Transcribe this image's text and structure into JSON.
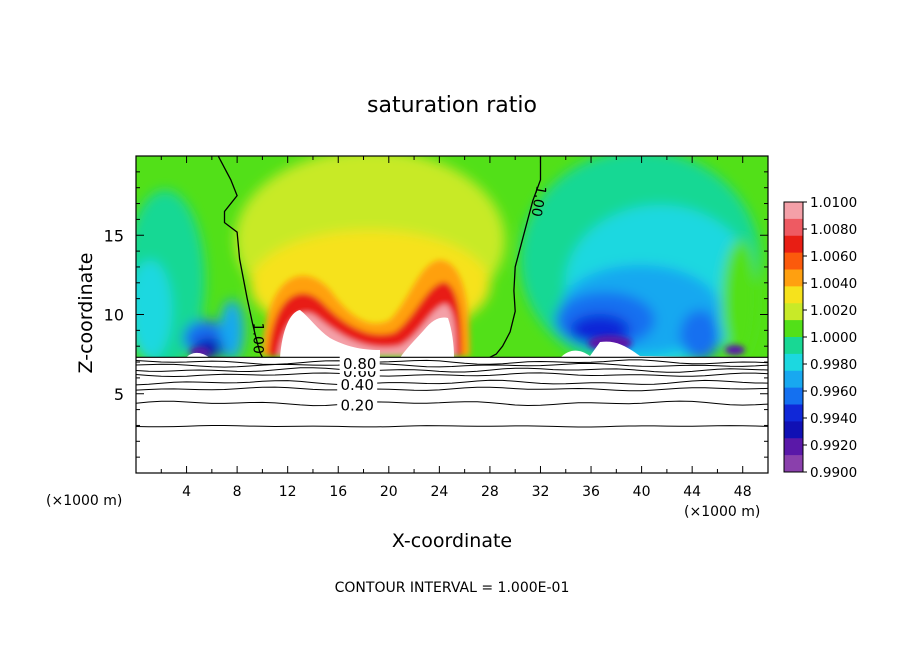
{
  "chart_data": {
    "type": "heatmap",
    "title": "saturation ratio",
    "xlabel": "X-coordinate",
    "ylabel": "Z-coordinate",
    "x_unit_left": "(×1000 m)",
    "x_unit_right": "(×1000 m)",
    "footer": "CONTOUR INTERVAL = 1.000E-01",
    "xlim": [
      0,
      50
    ],
    "ylim": [
      0,
      20
    ],
    "xticks": [
      4,
      8,
      12,
      16,
      20,
      24,
      28,
      32,
      36,
      40,
      44,
      48
    ],
    "xtick_labels": [
      "4",
      "8",
      "12",
      "16",
      "20",
      "24",
      "28",
      "32",
      "36",
      "40",
      "44",
      "48"
    ],
    "yticks": [
      5,
      10,
      15
    ],
    "ytick_labels": [
      "5",
      "10",
      "15"
    ],
    "domain_z": 7.3,
    "colorbar": {
      "labels": [
        "1.0100",
        "1.0080",
        "1.0060",
        "1.0040",
        "1.0020",
        "1.0000",
        "0.9980",
        "0.9960",
        "0.9940",
        "0.9920",
        "0.9900"
      ],
      "colors": [
        "#f4a0a8",
        "#ee5a62",
        "#e81e14",
        "#fb5a0c",
        "#ffa010",
        "#f6e21c",
        "#c8ea28",
        "#52e018",
        "#18d894",
        "#1cd8e0",
        "#18a8f0",
        "#1470f0",
        "#1028d8",
        "#1010b4",
        "#5a18a8",
        "#8a40ac"
      ]
    },
    "supersaturation_contour": {
      "label": "1.00",
      "left": {
        "x": [
          6.5,
          7.5,
          8,
          7,
          7,
          8,
          8.2,
          8.8,
          9.2,
          9.5,
          9.8,
          10
        ],
        "z": [
          20,
          18.5,
          17.5,
          16.5,
          15.8,
          15.2,
          13.5,
          11,
          9.5,
          8.5,
          7.6,
          7.3
        ]
      },
      "right": {
        "x": [
          32,
          32,
          31.4,
          31,
          30.5,
          30,
          29.9,
          30,
          29.6,
          29,
          28.5,
          28
        ],
        "z": [
          20,
          18.5,
          17.2,
          16,
          14.5,
          13,
          11.5,
          10.2,
          8.9,
          8,
          7.5,
          7.3
        ]
      }
    },
    "density_contours": [
      {
        "level": "0.20",
        "z": 4.4
      },
      {
        "level": "0.40",
        "z": 5.7
      },
      {
        "level": "0.60",
        "z": 6.5
      },
      {
        "level": "0.80",
        "z": 7.0
      }
    ],
    "extra_contours_z": [
      2.95,
      5.3,
      6.2,
      6.8
    ]
  }
}
